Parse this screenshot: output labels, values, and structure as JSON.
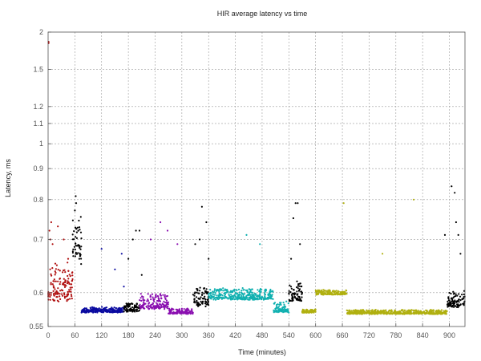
{
  "chart_data": {
    "type": "scatter",
    "title": "HIR average latency vs time",
    "xlabel": "Time (minutes)",
    "ylabel": "Latency, ms",
    "xlim": [
      0,
      935
    ],
    "ylim": [
      0.55,
      2.0
    ],
    "y_scale": "reciprocal",
    "grid": true,
    "x_ticks": [
      "0",
      "60",
      "120",
      "180",
      "240",
      "300",
      "360",
      "420",
      "480",
      "540",
      "600",
      "660",
      "720",
      "780",
      "840",
      "900"
    ],
    "y_ticks": [
      "0.55",
      "0.6",
      "0.7",
      "0.8",
      "0.9",
      "1",
      "1.1",
      "1.2",
      "1.5",
      "2"
    ],
    "series": [
      {
        "color": "#b01010",
        "x_range": [
          0,
          55
        ],
        "band": [
          0.572,
          0.66
        ],
        "outliers": [
          [
            1,
            1.82
          ],
          [
            1,
            1.84
          ],
          [
            3,
            0.72
          ],
          [
            5,
            0.7
          ],
          [
            7,
            0.74
          ],
          [
            10,
            0.69
          ],
          [
            22,
            0.73
          ],
          [
            35,
            0.7
          ],
          [
            45,
            0.66
          ]
        ]
      },
      {
        "color": "#000000",
        "x_range": [
          55,
          75
        ],
        "band": [
          0.64,
          0.76
        ],
        "outliers": [
          [
            62,
            0.81
          ],
          [
            63,
            0.79
          ],
          [
            60,
            0.77
          ],
          [
            70,
            0.66
          ],
          [
            74,
            0.65
          ]
        ]
      },
      {
        "color": "#0a0aa0",
        "x_range": [
          75,
          170
        ],
        "band": [
          0.568,
          0.578
        ],
        "outliers": [
          [
            120,
            0.68
          ],
          [
            150,
            0.64
          ],
          [
            165,
            0.67
          ],
          [
            170,
            0.61
          ]
        ]
      },
      {
        "color": "#000000",
        "x_range": [
          170,
          205
        ],
        "band": [
          0.568,
          0.585
        ],
        "outliers": [
          [
            180,
            0.66
          ],
          [
            190,
            0.7
          ],
          [
            197,
            0.72
          ],
          [
            205,
            0.72
          ],
          [
            210,
            0.63
          ]
        ]
      },
      {
        "color": "#8a10b0",
        "x_range": [
          205,
          270
        ],
        "band": [
          0.57,
          0.6
        ],
        "outliers": [
          [
            230,
            0.7
          ],
          [
            252,
            0.74
          ],
          [
            268,
            0.72
          ]
        ]
      },
      {
        "color": "#8a10b0",
        "x_range": [
          270,
          325
        ],
        "band": [
          0.566,
          0.576
        ],
        "outliers": [
          [
            290,
            0.69
          ]
        ]
      },
      {
        "color": "#000000",
        "x_range": [
          325,
          360
        ],
        "band": [
          0.572,
          0.61
        ],
        "outliers": [
          [
            330,
            0.69
          ],
          [
            340,
            0.7
          ],
          [
            345,
            0.78
          ],
          [
            355,
            0.74
          ],
          [
            360,
            0.66
          ]
        ]
      },
      {
        "color": "#10b0b0",
        "x_range": [
          360,
          505
        ],
        "band": [
          0.585,
          0.608
        ],
        "outliers": [
          [
            445,
            0.71
          ],
          [
            475,
            0.69
          ]
        ]
      },
      {
        "color": "#10b0b0",
        "x_range": [
          505,
          540
        ],
        "band": [
          0.566,
          0.588
        ],
        "outliers": []
      },
      {
        "color": "#000000",
        "x_range": [
          540,
          570
        ],
        "band": [
          0.58,
          0.62
        ],
        "outliers": [
          [
            545,
            0.66
          ],
          [
            550,
            0.75
          ],
          [
            555,
            0.79
          ],
          [
            560,
            0.79
          ],
          [
            565,
            0.69
          ]
        ]
      },
      {
        "color": "#b0b010",
        "x_range": [
          570,
          600
        ],
        "band": [
          0.568,
          0.575
        ],
        "outliers": []
      },
      {
        "color": "#b0b010",
        "x_range": [
          600,
          670
        ],
        "band": [
          0.595,
          0.605
        ],
        "outliers": [
          [
            663,
            0.79
          ]
        ]
      },
      {
        "color": "#b0b010",
        "x_range": [
          670,
          895
        ],
        "band": [
          0.566,
          0.574
        ],
        "outliers": [
          [
            750,
            0.67
          ],
          [
            820,
            0.8
          ]
        ]
      },
      {
        "color": "#000000",
        "x_range": [
          895,
          935
        ],
        "band": [
          0.572,
          0.605
        ],
        "outliers": [
          [
            890,
            0.71
          ],
          [
            905,
            0.84
          ],
          [
            912,
            0.82
          ],
          [
            915,
            0.74
          ],
          [
            920,
            0.71
          ],
          [
            925,
            0.67
          ]
        ]
      }
    ]
  }
}
